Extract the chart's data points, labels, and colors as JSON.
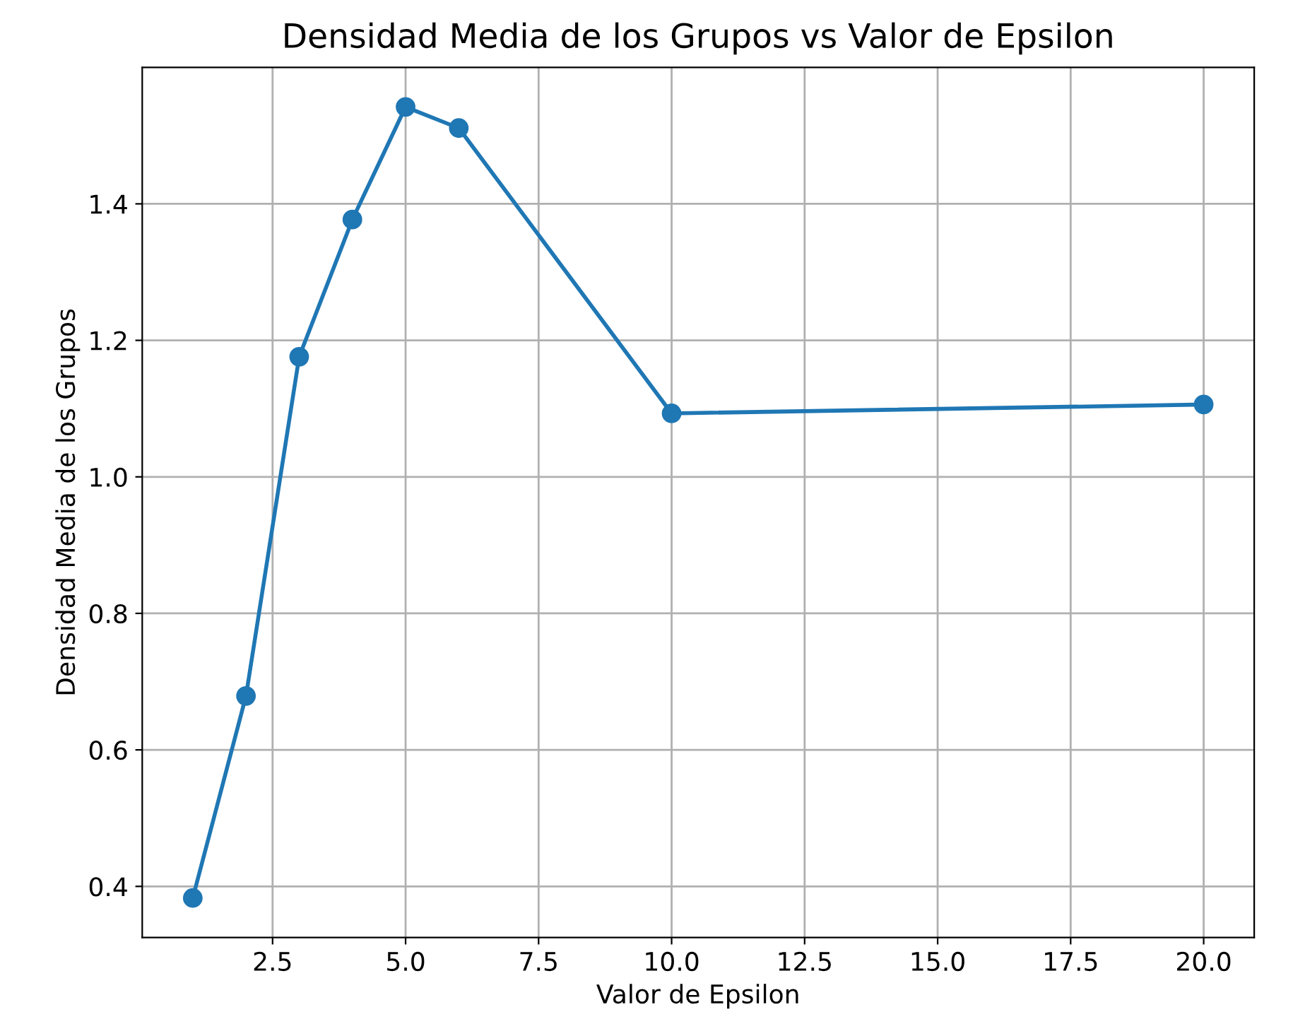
{
  "chart_data": {
    "type": "line",
    "title": "Densidad Media de los Grupos vs Valor de Epsilon",
    "xlabel": "Valor de Epsilon",
    "ylabel": "Densidad Media de los Grupos",
    "x": [
      1,
      2,
      3,
      4,
      5,
      6,
      10,
      20
    ],
    "series": [
      {
        "color": "#1f77b4",
        "values": [
          0.383,
          0.679,
          1.176,
          1.377,
          1.542,
          1.511,
          1.093,
          1.106
        ]
      }
    ],
    "xlim": [
      0.05,
      20.95
    ],
    "ylim": [
      0.325,
      1.6
    ],
    "xticks": [
      {
        "value": 2.5,
        "label": "2.5"
      },
      {
        "value": 5,
        "label": "5.0"
      },
      {
        "value": 7.5,
        "label": "7.5"
      },
      {
        "value": 10,
        "label": "10.0"
      },
      {
        "value": 12.5,
        "label": "12.5"
      },
      {
        "value": 15,
        "label": "15.0"
      },
      {
        "value": 17.5,
        "label": "17.5"
      },
      {
        "value": 20,
        "label": "20.0"
      }
    ],
    "yticks": [
      0.4,
      0.6,
      0.8,
      {
        "value": 1,
        "label": "1.0"
      },
      1.2,
      1.4
    ],
    "grid": true,
    "marker": "circle",
    "line_style": "solid"
  }
}
